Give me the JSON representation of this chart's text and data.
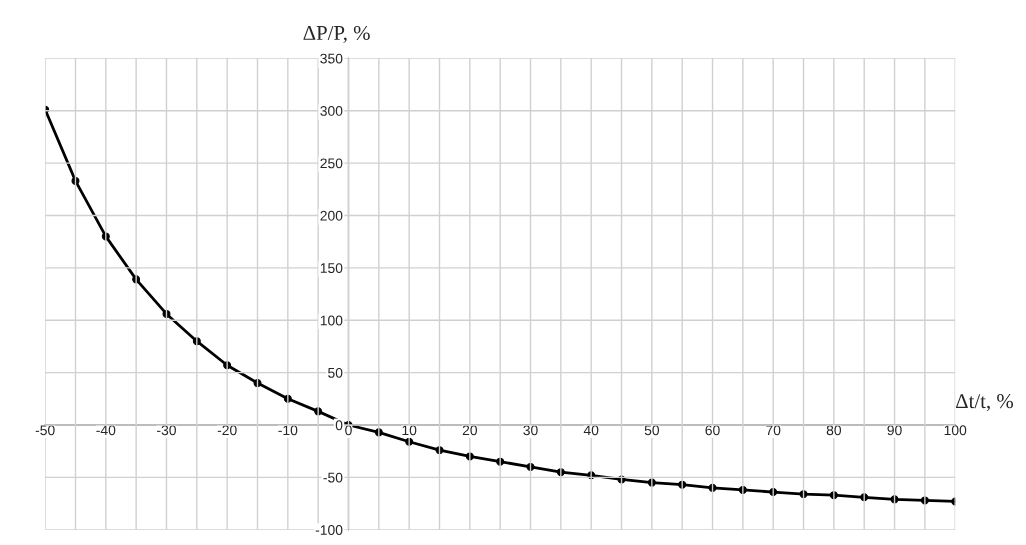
{
  "chart_data": {
    "type": "line",
    "xlabel": "Δt/t, %",
    "ylabel": "ΔP/P, %",
    "x": [
      -50,
      -45,
      -40,
      -35,
      -30,
      -25,
      -20,
      -15,
      -10,
      -5,
      0,
      5,
      10,
      15,
      20,
      25,
      30,
      35,
      40,
      45,
      50,
      55,
      60,
      65,
      70,
      75,
      80,
      85,
      90,
      95,
      100
    ],
    "series": [
      {
        "color": "#000000",
        "values": [
          301,
          233,
          180,
          139,
          106,
          80,
          57,
          40,
          25,
          13,
          0,
          -7,
          -16,
          -24,
          -30,
          -35,
          -40,
          -45,
          -48,
          -52,
          -55,
          -57,
          -60,
          -62,
          -64,
          -66,
          -67,
          -69,
          -71,
          -72,
          -73
        ]
      }
    ],
    "xlim": [
      -50,
      100
    ],
    "ylim": [
      -100,
      350
    ],
    "xticks": [
      -50,
      {
        "value": -45,
        "label": null
      },
      -40,
      {
        "value": -35,
        "label": null
      },
      -30,
      {
        "value": -25,
        "label": null
      },
      -20,
      {
        "value": -15,
        "label": null
      },
      -10,
      {
        "value": -5,
        "label": null
      },
      0,
      {
        "value": 5,
        "label": null
      },
      10,
      {
        "value": 15,
        "label": null
      },
      20,
      {
        "value": 25,
        "label": null
      },
      30,
      {
        "value": 35,
        "label": null
      },
      40,
      {
        "value": 45,
        "label": null
      },
      50,
      {
        "value": 55,
        "label": null
      },
      60,
      {
        "value": 65,
        "label": null
      },
      70,
      {
        "value": 75,
        "label": null
      },
      80,
      {
        "value": 85,
        "label": null
      },
      90,
      {
        "value": 95,
        "label": null
      },
      100
    ],
    "yticks": [
      -100,
      -50,
      0,
      50,
      100,
      150,
      200,
      250,
      300,
      350
    ],
    "grid": true,
    "marker": "circle",
    "line_style": "solid",
    "legend": false
  }
}
